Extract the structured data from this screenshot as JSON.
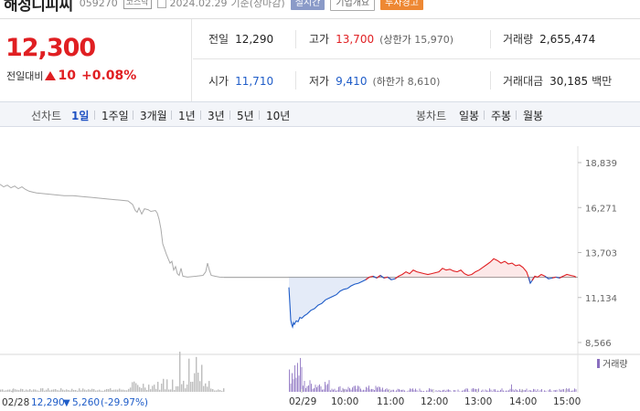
{
  "header": {
    "name": "해성디피씨",
    "code": "059270",
    "market": "코스닥",
    "date": "2024.02.29",
    "basis": "기준(장마감)",
    "badge_live": "실시간",
    "badge_info": "기업개요",
    "badge_warn": "투자경고"
  },
  "quote": {
    "price": "12,300",
    "change_label": "전일대비",
    "change": "10",
    "change_pct": "+0.08%",
    "prev_label": "전일",
    "prev": "12,290",
    "high_label": "고가",
    "high": "13,700",
    "upper_label": "상한가",
    "upper": "15,970",
    "volume_label": "거래량",
    "volume": "2,655,474",
    "open_label": "시가",
    "open": "11,710",
    "low_label": "저가",
    "low": "9,410",
    "lower_label": "하한가",
    "lower": "8,610",
    "amount_label": "거래대금",
    "amount": "30,185",
    "amount_unit": "백만"
  },
  "period_bar": {
    "line_label": "선차트",
    "periods": [
      "1일",
      "1주일",
      "3개월",
      "1년",
      "3년",
      "5년",
      "10년"
    ],
    "selected": "1일",
    "candle_label": "봉차트",
    "candles": [
      "일봉",
      "주봉",
      "월봉"
    ]
  },
  "colors": {
    "up": "#e01f22",
    "down": "#1e5cc8",
    "volume": "#8a6fbf",
    "prev_day": "#aaaaaa"
  },
  "chart_data": {
    "type": "line",
    "y_ticks": [
      "18,839",
      "16,271",
      "13,703",
      "11,134",
      "8,566"
    ],
    "ylim": [
      8566,
      18839
    ],
    "reference_price": 12290,
    "x_ticks": [
      "02/28",
      "02/29",
      "10:00",
      "11:00",
      "12:00",
      "13:00",
      "14:00",
      "15:00"
    ],
    "volume_label": "거래량",
    "prev_day_series": [
      [
        0,
        17600
      ],
      [
        4,
        17450
      ],
      [
        8,
        17550
      ],
      [
        12,
        17400
      ],
      [
        16,
        17500
      ],
      [
        20,
        17350
      ],
      [
        24,
        17450
      ],
      [
        28,
        17300
      ],
      [
        32,
        17200
      ],
      [
        36,
        17150
      ],
      [
        40,
        17100
      ],
      [
        50,
        17050
      ],
      [
        60,
        17000
      ],
      [
        70,
        16950
      ],
      [
        80,
        16950
      ],
      [
        90,
        16900
      ],
      [
        100,
        16850
      ],
      [
        110,
        16800
      ],
      [
        120,
        16750
      ],
      [
        130,
        16700
      ],
      [
        140,
        16650
      ],
      [
        145,
        16450
      ],
      [
        148,
        16100
      ],
      [
        150,
        16000
      ],
      [
        152,
        16250
      ],
      [
        155,
        15900
      ],
      [
        158,
        16200
      ],
      [
        162,
        16150
      ],
      [
        165,
        16050
      ],
      [
        170,
        16100
      ],
      [
        172,
        15950
      ],
      [
        174,
        15600
      ],
      [
        176,
        15050
      ],
      [
        178,
        14200
      ],
      [
        180,
        13900
      ],
      [
        182,
        13600
      ],
      [
        184,
        13350
      ],
      [
        186,
        13100
      ],
      [
        188,
        13200
      ],
      [
        190,
        12700
      ],
      [
        192,
        12900
      ],
      [
        194,
        12500
      ],
      [
        196,
        12400
      ],
      [
        198,
        12800
      ],
      [
        200,
        12350
      ],
      [
        205,
        12300
      ],
      [
        215,
        12350
      ],
      [
        222,
        12400
      ],
      [
        225,
        12600
      ],
      [
        227,
        13100
      ],
      [
        229,
        12700
      ],
      [
        231,
        12400
      ],
      [
        235,
        12350
      ],
      [
        240,
        12300
      ],
      [
        245,
        12290
      ],
      [
        270,
        12290
      ],
      [
        315,
        12290
      ]
    ],
    "today_series": [
      [
        316,
        11710
      ],
      [
        317,
        10800
      ],
      [
        318,
        9850
      ],
      [
        319,
        9600
      ],
      [
        320,
        9450
      ],
      [
        321,
        9700
      ],
      [
        322,
        9600
      ],
      [
        324,
        9800
      ],
      [
        326,
        9750
      ],
      [
        328,
        10000
      ],
      [
        330,
        9950
      ],
      [
        333,
        10100
      ],
      [
        336,
        10200
      ],
      [
        340,
        10400
      ],
      [
        344,
        10500
      ],
      [
        348,
        10700
      ],
      [
        352,
        10800
      ],
      [
        356,
        11000
      ],
      [
        360,
        11100
      ],
      [
        364,
        11200
      ],
      [
        368,
        11300
      ],
      [
        372,
        11500
      ],
      [
        376,
        11600
      ],
      [
        380,
        11650
      ],
      [
        384,
        11800
      ],
      [
        388,
        11900
      ],
      [
        392,
        11950
      ],
      [
        396,
        12050
      ],
      [
        400,
        12150
      ],
      [
        404,
        12300
      ],
      [
        408,
        12350
      ],
      [
        412,
        12250
      ],
      [
        416,
        12400
      ],
      [
        420,
        12250
      ],
      [
        424,
        12300
      ],
      [
        428,
        12150
      ],
      [
        432,
        12200
      ],
      [
        436,
        12350
      ],
      [
        440,
        12450
      ],
      [
        444,
        12600
      ],
      [
        448,
        12500
      ],
      [
        452,
        12700
      ],
      [
        456,
        12600
      ],
      [
        460,
        12550
      ],
      [
        464,
        12500
      ],
      [
        468,
        12450
      ],
      [
        472,
        12500
      ],
      [
        476,
        12550
      ],
      [
        480,
        12600
      ],
      [
        484,
        12800
      ],
      [
        488,
        12700
      ],
      [
        492,
        12750
      ],
      [
        496,
        12650
      ],
      [
        500,
        12600
      ],
      [
        504,
        12700
      ],
      [
        508,
        12500
      ],
      [
        512,
        12400
      ],
      [
        516,
        12450
      ],
      [
        520,
        12600
      ],
      [
        524,
        12700
      ],
      [
        528,
        12850
      ],
      [
        532,
        13000
      ],
      [
        536,
        13150
      ],
      [
        540,
        13350
      ],
      [
        544,
        13250
      ],
      [
        548,
        13100
      ],
      [
        552,
        13200
      ],
      [
        556,
        13050
      ],
      [
        560,
        13100
      ],
      [
        564,
        12950
      ],
      [
        568,
        13000
      ],
      [
        572,
        12850
      ],
      [
        576,
        12600
      ],
      [
        578,
        12300
      ],
      [
        580,
        11950
      ],
      [
        582,
        12100
      ],
      [
        585,
        12350
      ],
      [
        588,
        12300
      ],
      [
        592,
        12450
      ],
      [
        596,
        12350
      ],
      [
        600,
        12200
      ],
      [
        604,
        12250
      ],
      [
        608,
        12300
      ],
      [
        612,
        12250
      ],
      [
        616,
        12350
      ],
      [
        620,
        12450
      ],
      [
        624,
        12400
      ],
      [
        628,
        12350
      ],
      [
        630,
        12300
      ]
    ]
  },
  "footer": {
    "prev_date": "02/28",
    "prev_close": "12,290",
    "prev_change": "5,260",
    "prev_change_pct": "(-29.97%)"
  }
}
